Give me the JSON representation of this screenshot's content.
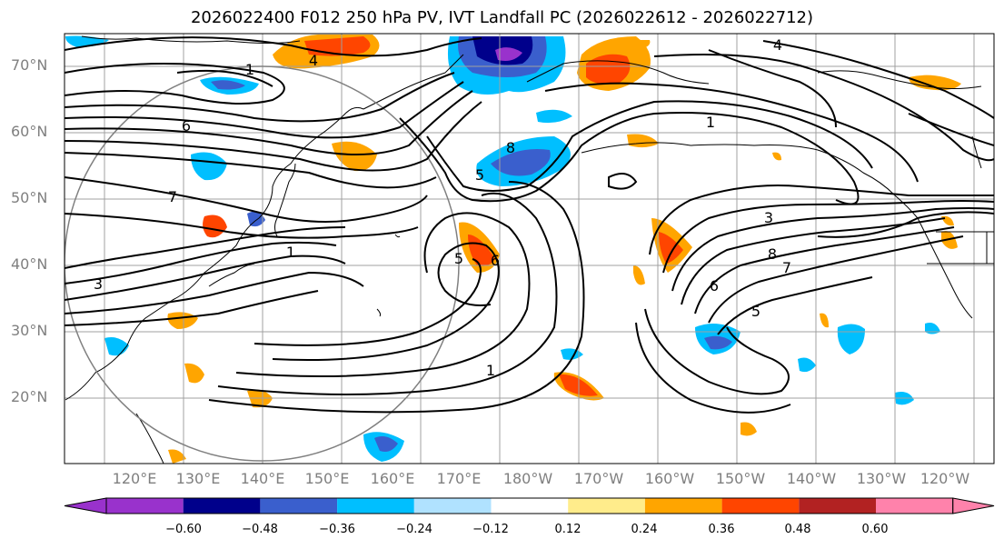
{
  "title": "2026022400 F012 250 hPa PV, IVT Landfall PC (2026022612 - 2026022712)",
  "lat_labels": [
    "70°N",
    "60°N",
    "50°N",
    "40°N",
    "30°N",
    "20°N"
  ],
  "lon_labels": [
    "120°E",
    "130°E",
    "140°E",
    "150°E",
    "160°E",
    "170°E",
    "180°W",
    "170°W",
    "160°W",
    "150°W",
    "140°W",
    "130°W",
    "120°W"
  ],
  "colorbar": {
    "ticks": [
      "−0.60",
      "−0.48",
      "−0.36",
      "−0.24",
      "−0.12",
      "0.12",
      "0.24",
      "0.36",
      "0.48",
      "0.60"
    ],
    "colors": [
      "#9932cc",
      "#00008b",
      "#3a5fcd",
      "#00bfff",
      "#b0e2ff",
      "#ffffff",
      "#ffec8b",
      "#ffa500",
      "#ff4500",
      "#b22222",
      "#ff82ab"
    ]
  },
  "contour_labels": [
    "1",
    "4",
    "6",
    "7",
    "8",
    "5",
    "3",
    "1",
    "6",
    "5",
    "1",
    "4",
    "3",
    "8",
    "7",
    "6",
    "5",
    "1"
  ]
}
